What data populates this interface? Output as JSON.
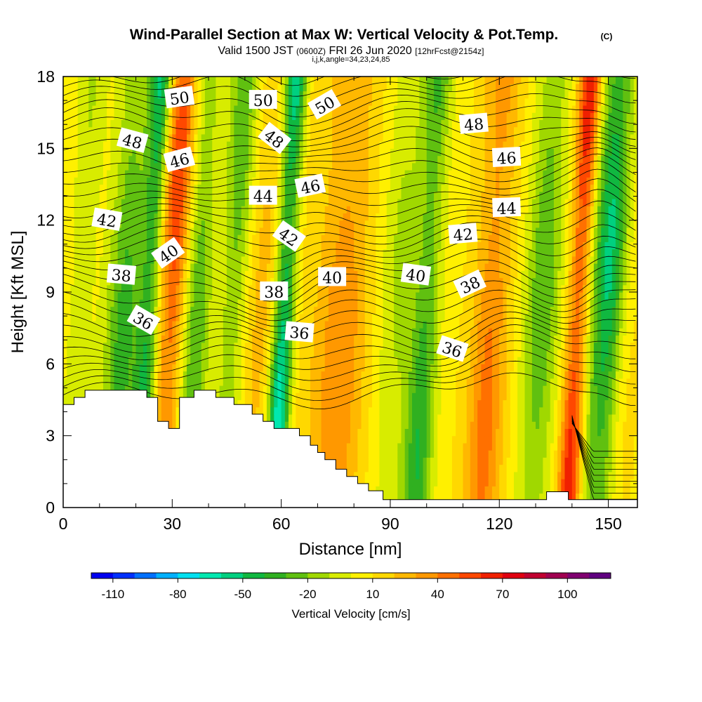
{
  "header": {
    "title": "Wind-Parallel Section at Max W: Vertical Velocity & Pot.Temp.",
    "copyright": "(C)",
    "valid_prefix": "Valid 1500 JST",
    "valid_utc": "(0600Z)",
    "valid_date": "FRI 26 Jun 2020",
    "fcst": "[12hrFcst@2154z]",
    "indices": "i,j,k,angle=34,23,24,85"
  },
  "colorbar": {
    "label": "Vertical Velocity [cm/s]",
    "tick_labels": [
      "-110",
      "-80",
      "-50",
      "-20",
      "10",
      "40",
      "70",
      "100"
    ],
    "colors": [
      "#0000f0",
      "#0030ff",
      "#0070ff",
      "#00b0ff",
      "#00e0f0",
      "#00e8b0",
      "#00d080",
      "#10b840",
      "#30b020",
      "#60c010",
      "#a0d800",
      "#d8ec00",
      "#fff000",
      "#ffd800",
      "#ffb800",
      "#ff9800",
      "#ff7000",
      "#ff4800",
      "#f02000",
      "#e00010",
      "#c00030",
      "#a00050",
      "#800070",
      "#600080"
    ]
  },
  "chart_data": {
    "type": "heatmap",
    "xlabel": "Distance [nm]",
    "ylabel": "Height [Kft MSL]",
    "xlim": [
      0,
      158
    ],
    "ylim": [
      0,
      18
    ],
    "x_ticks": [
      0,
      30,
      60,
      90,
      120,
      150
    ],
    "y_ticks": [
      0,
      3,
      6,
      9,
      12,
      15,
      18
    ],
    "w_field_features": [
      {
        "x_center": 5,
        "half_width": 4,
        "value": -12
      },
      {
        "x_center": 17,
        "half_width": 5,
        "value": -35
      },
      {
        "x_center": 24,
        "half_width": 3,
        "value": -55
      },
      {
        "x_center": 30,
        "half_width": 4,
        "value": 60
      },
      {
        "x_center": 37,
        "half_width": 4,
        "value": -30
      },
      {
        "x_center": 47,
        "half_width": 4,
        "value": -30
      },
      {
        "x_center": 55,
        "half_width": 5,
        "value": 25
      },
      {
        "x_center": 61,
        "half_width": 3,
        "value": -75
      },
      {
        "x_center": 66,
        "half_width": 4,
        "value": 15
      },
      {
        "x_center": 77,
        "half_width": 7,
        "value": 40
      },
      {
        "x_center": 92,
        "half_width": 5,
        "value": -12
      },
      {
        "x_center": 100,
        "half_width": 4,
        "value": -40
      },
      {
        "x_center": 118,
        "half_width": 5,
        "value": 45
      },
      {
        "x_center": 132,
        "half_width": 5,
        "value": -30
      },
      {
        "x_center": 142,
        "half_width": 3,
        "value": 75
      },
      {
        "x_center": 150,
        "half_width": 5,
        "value": -55
      },
      {
        "x_center": 155,
        "half_width": 4,
        "value": 20
      }
    ],
    "terrain_kft": [
      [
        0,
        4.3
      ],
      [
        3,
        4.3
      ],
      [
        3,
        4.6
      ],
      [
        6,
        4.6
      ],
      [
        6,
        4.9
      ],
      [
        23,
        4.9
      ],
      [
        23,
        4.6
      ],
      [
        26,
        4.6
      ],
      [
        26,
        3.6
      ],
      [
        29,
        3.6
      ],
      [
        29,
        3.3
      ],
      [
        32,
        3.3
      ],
      [
        32,
        4.6
      ],
      [
        36,
        4.6
      ],
      [
        36,
        4.9
      ],
      [
        42,
        4.9
      ],
      [
        42,
        4.6
      ],
      [
        47,
        4.6
      ],
      [
        47,
        4.3
      ],
      [
        52,
        4.3
      ],
      [
        52,
        3.9
      ],
      [
        55,
        3.9
      ],
      [
        55,
        3.6
      ],
      [
        58,
        3.6
      ],
      [
        58,
        3.3
      ],
      [
        65,
        3.3
      ],
      [
        65,
        3.0
      ],
      [
        68,
        3.0
      ],
      [
        68,
        2.6
      ],
      [
        70,
        2.6
      ],
      [
        70,
        2.3
      ],
      [
        72,
        2.3
      ],
      [
        72,
        2.0
      ],
      [
        75,
        2.0
      ],
      [
        75,
        1.6
      ],
      [
        78,
        1.6
      ],
      [
        78,
        1.3
      ],
      [
        81,
        1.3
      ],
      [
        81,
        1.0
      ],
      [
        84,
        1.0
      ],
      [
        84,
        0.7
      ],
      [
        88,
        0.7
      ],
      [
        88,
        0.33
      ],
      [
        133,
        0.33
      ],
      [
        133,
        0.66
      ],
      [
        139,
        0.66
      ],
      [
        139,
        0.33
      ],
      [
        158,
        0.33
      ]
    ],
    "contour_labels": [
      {
        "text": "50",
        "x": 32,
        "y": 17.1,
        "rot": -8
      },
      {
        "text": "50",
        "x": 55,
        "y": 17.0,
        "rot": 0
      },
      {
        "text": "50",
        "x": 72,
        "y": 16.8,
        "rot": -30
      },
      {
        "text": "48",
        "x": 19,
        "y": 15.3,
        "rot": 15
      },
      {
        "text": "46",
        "x": 32,
        "y": 14.5,
        "rot": -15
      },
      {
        "text": "48",
        "x": 58,
        "y": 15.4,
        "rot": 38
      },
      {
        "text": "48",
        "x": 113,
        "y": 16.0,
        "rot": -5
      },
      {
        "text": "44",
        "x": 55,
        "y": 13.0,
        "rot": 0
      },
      {
        "text": "46",
        "x": 68,
        "y": 13.4,
        "rot": -12
      },
      {
        "text": "46",
        "x": 122,
        "y": 14.6,
        "rot": -3
      },
      {
        "text": "42",
        "x": 12,
        "y": 12.0,
        "rot": 10
      },
      {
        "text": "44",
        "x": 122,
        "y": 12.5,
        "rot": -2
      },
      {
        "text": "42",
        "x": 62,
        "y": 11.3,
        "rot": 35
      },
      {
        "text": "42",
        "x": 110,
        "y": 11.4,
        "rot": -5
      },
      {
        "text": "40",
        "x": 29,
        "y": 10.6,
        "rot": -35
      },
      {
        "text": "38",
        "x": 16,
        "y": 9.7,
        "rot": 5
      },
      {
        "text": "40",
        "x": 74,
        "y": 9.6,
        "rot": 0
      },
      {
        "text": "40",
        "x": 97,
        "y": 9.7,
        "rot": 8
      },
      {
        "text": "38",
        "x": 58,
        "y": 9.0,
        "rot": 0
      },
      {
        "text": "38",
        "x": 112,
        "y": 9.3,
        "rot": -25
      },
      {
        "text": "36",
        "x": 22,
        "y": 7.8,
        "rot": 30
      },
      {
        "text": "36",
        "x": 65,
        "y": 7.3,
        "rot": 5
      },
      {
        "text": "36",
        "x": 107,
        "y": 6.6,
        "rot": 18
      }
    ]
  }
}
